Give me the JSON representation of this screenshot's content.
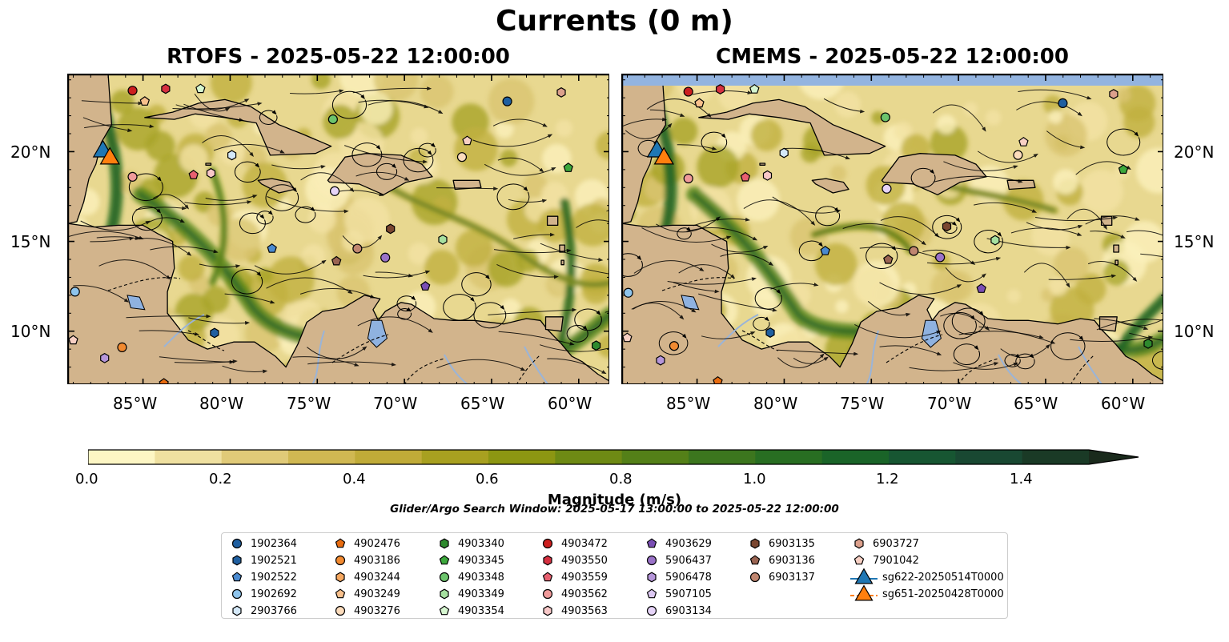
{
  "title": "Currents (0 m)",
  "panels": [
    {
      "id": "rtofs",
      "title": "RTOFS - 2025-05-22 12:00:00"
    },
    {
      "id": "cmems",
      "title": "CMEMS - 2025-05-22 12:00:00"
    }
  ],
  "lon_ticks": [
    "85°W",
    "80°W",
    "75°W",
    "70°W",
    "65°W",
    "60°W"
  ],
  "lat_ticks": [
    "20°N",
    "15°N",
    "10°N"
  ],
  "colorbar": {
    "label": "Magnitude (m/s)",
    "tick_labels": [
      "0.0",
      "0.2",
      "0.4",
      "0.6",
      "0.8",
      "1.0",
      "1.2",
      "1.4"
    ],
    "min": 0.0,
    "max": 1.5,
    "colors": [
      "#fdf6c4",
      "#efe0a0",
      "#e0ca78",
      "#d0b852",
      "#c0ab38",
      "#a8a020",
      "#8c9612",
      "#6e8a14",
      "#548018",
      "#3c761e",
      "#286e22",
      "#1a6428",
      "#175632",
      "#194832",
      "#1a3a26",
      "#1a2a1c"
    ]
  },
  "search_window": "Glider/Argo Search Window: 2025-05-17 13:00:00 to 2025-05-22 12:00:00",
  "legend": [
    {
      "label": "1902364",
      "color": "#1f5fa0",
      "shape": "circle"
    },
    {
      "label": "1902521",
      "color": "#1f5fa0",
      "shape": "hexagon"
    },
    {
      "label": "1902522",
      "color": "#4a8ad0",
      "shape": "pentagon"
    },
    {
      "label": "1902692",
      "color": "#8ec4ec",
      "shape": "circle"
    },
    {
      "label": "2903766",
      "color": "#d4e8f8",
      "shape": "hexagon"
    },
    {
      "label": "4902476",
      "color": "#e86c10",
      "shape": "pentagon"
    },
    {
      "label": "4903186",
      "color": "#f28a30",
      "shape": "circle"
    },
    {
      "label": "4903244",
      "color": "#f6a860",
      "shape": "hexagon"
    },
    {
      "label": "4903249",
      "color": "#f8c08c",
      "shape": "pentagon"
    },
    {
      "label": "4903276",
      "color": "#fcdcbc",
      "shape": "circle"
    },
    {
      "label": "4903340",
      "color": "#2e8a2e",
      "shape": "hexagon"
    },
    {
      "label": "4903345",
      "color": "#3ca83c",
      "shape": "pentagon"
    },
    {
      "label": "4903348",
      "color": "#6cc46c",
      "shape": "circle"
    },
    {
      "label": "4903349",
      "color": "#a6e0a0",
      "shape": "hexagon"
    },
    {
      "label": "4903354",
      "color": "#d6f6d0",
      "shape": "pentagon"
    },
    {
      "label": "4903472",
      "color": "#cc1f1f",
      "shape": "circle"
    },
    {
      "label": "4903550",
      "color": "#d63040",
      "shape": "hexagon"
    },
    {
      "label": "4903559",
      "color": "#e86070",
      "shape": "pentagon"
    },
    {
      "label": "4903562",
      "color": "#f09a9a",
      "shape": "circle"
    },
    {
      "label": "4903563",
      "color": "#f8c8c8",
      "shape": "hexagon"
    },
    {
      "label": "4903629",
      "color": "#7a4eb4",
      "shape": "pentagon"
    },
    {
      "label": "5906437",
      "color": "#9a72c8",
      "shape": "circle"
    },
    {
      "label": "5906478",
      "color": "#b696da",
      "shape": "hexagon"
    },
    {
      "label": "5907105",
      "color": "#dcc8f2",
      "shape": "pentagon"
    },
    {
      "label": "6903134",
      "color": "#e6d4f8",
      "shape": "circle"
    },
    {
      "label": "6903135",
      "color": "#7a4630",
      "shape": "hexagon"
    },
    {
      "label": "6903136",
      "color": "#9a6452",
      "shape": "pentagon"
    },
    {
      "label": "6903137",
      "color": "#c08670",
      "shape": "circle"
    },
    {
      "label": "6903727",
      "color": "#dca08c",
      "shape": "hexagon"
    },
    {
      "label": "7901042",
      "color": "#f8d0c4",
      "shape": "pentagon"
    },
    {
      "label": "sg622-20250514T0000",
      "color": "#1f77b4",
      "shape": "triangle"
    },
    {
      "label": "sg651-20250428T0000",
      "color": "#ff7f0e",
      "shape": "triangle"
    }
  ]
}
